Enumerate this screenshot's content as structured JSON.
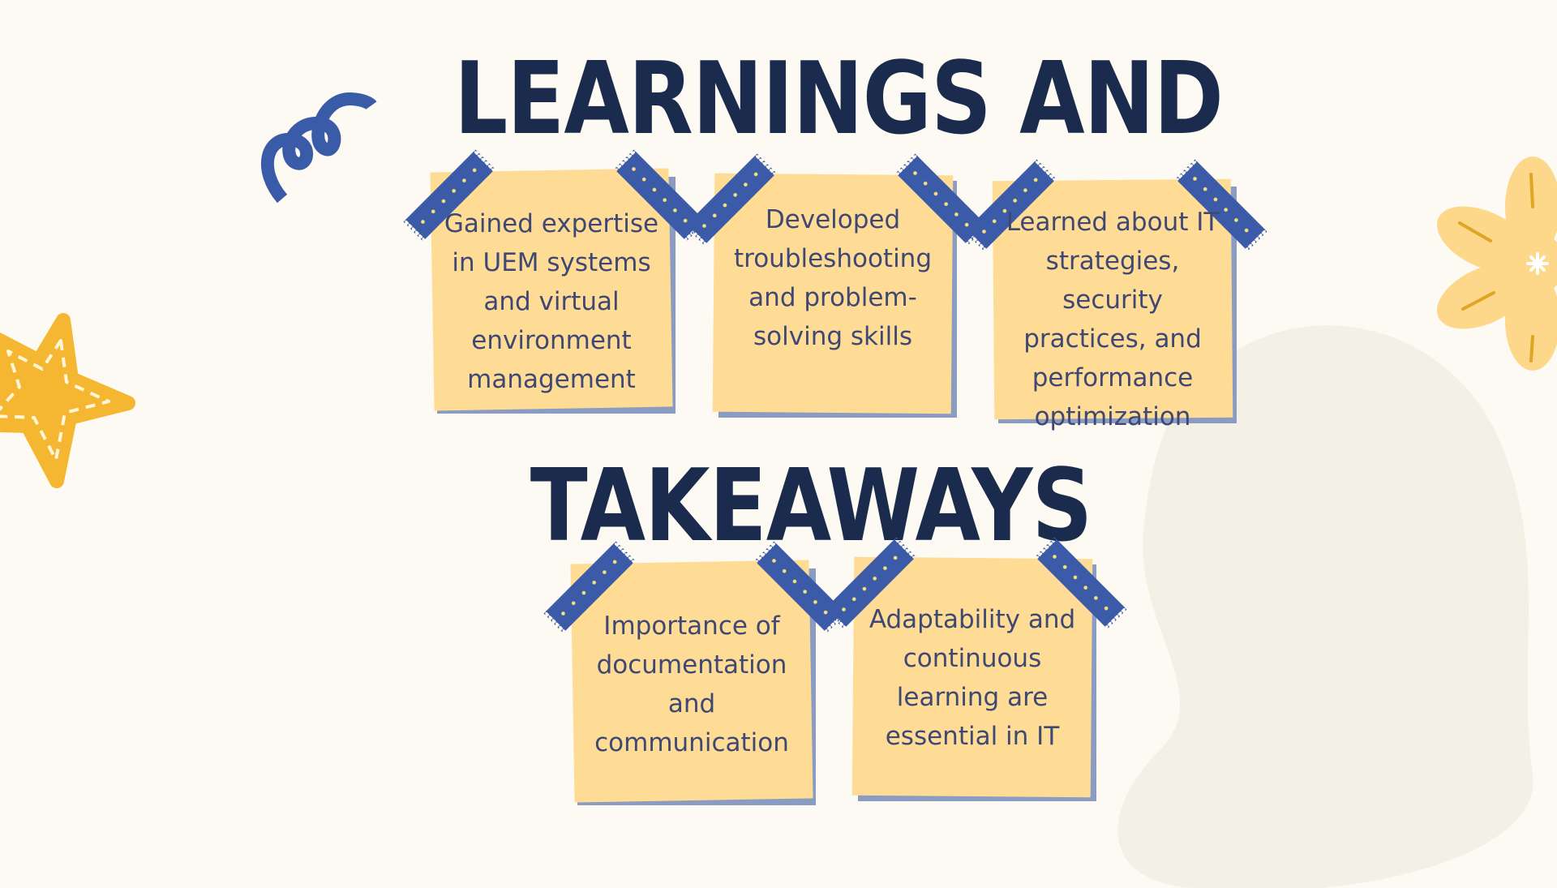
{
  "title": {
    "line1": "LEARNINGS AND",
    "line2": "TAKEAWAYS"
  },
  "notes": [
    {
      "text": "Gained expertise in UEM systems and virtual environment management"
    },
    {
      "text": "Developed troubleshooting and problem-solving skills"
    },
    {
      "text": "Learned about IT strategies, security practices, and performance optimization"
    },
    {
      "text": "Importance of documentation and communication"
    },
    {
      "text": "Adaptability and continuous learning are essential in IT"
    }
  ],
  "colors": {
    "background": "#fcfaf2",
    "title": "#1b2b4d",
    "note_paper": "#fedc96",
    "note_text": "#3e4873",
    "tape": "#3b5aa8",
    "star": "#f5b731",
    "flower": "#fdd88a"
  },
  "icons": [
    "squiggle-icon",
    "star-icon",
    "flower-icon",
    "tape-icon"
  ]
}
